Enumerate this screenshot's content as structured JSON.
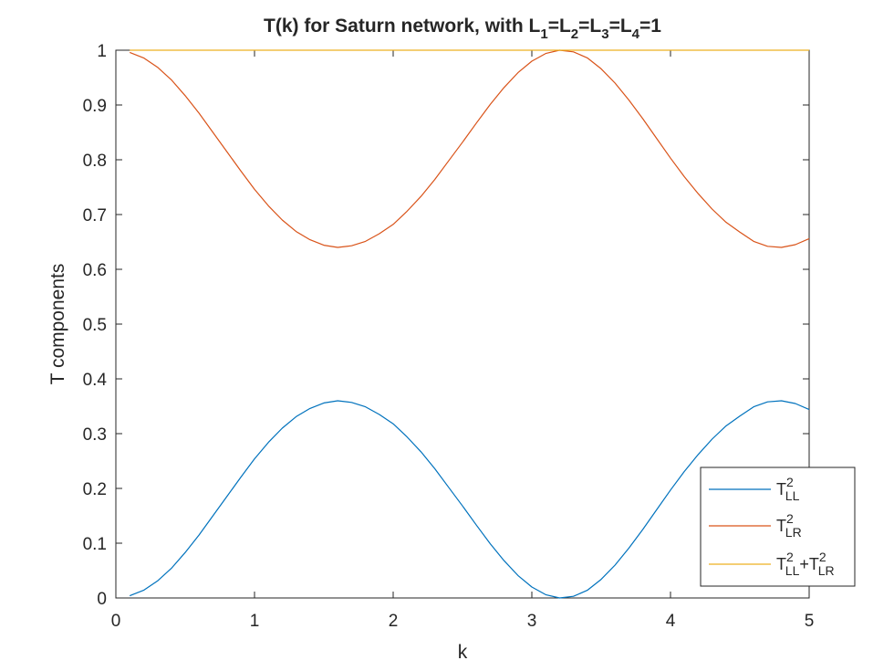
{
  "chart_data": {
    "type": "line",
    "title": "T(k) for Saturn network, with L1=L2=L3=L4=1",
    "title_parts": {
      "prefix": "T(k) for Saturn network, with L",
      "sub1": "1",
      "sep1": "=L",
      "sub2": "2",
      "sep2": "=L",
      "sub3": "3",
      "sep3": "=L",
      "sub4": "4",
      "suffix": "=1"
    },
    "xlabel": "k",
    "ylabel": "T components",
    "xlim": [
      0,
      5
    ],
    "ylim": [
      0,
      1
    ],
    "xticks": [
      "0",
      "1",
      "2",
      "3",
      "4",
      "5"
    ],
    "yticks": [
      "0",
      "0.1",
      "0.2",
      "0.3",
      "0.4",
      "0.5",
      "0.6",
      "0.7",
      "0.8",
      "0.9",
      "1"
    ],
    "grid": false,
    "legend_position": "bottom-right",
    "x": [
      0.1,
      0.2,
      0.3,
      0.4,
      0.5,
      0.6,
      0.7,
      0.8,
      0.9,
      1.0,
      1.1,
      1.2,
      1.3,
      1.4,
      1.5,
      1.6,
      1.7,
      1.8,
      1.9,
      2.0,
      2.1,
      2.2,
      2.3,
      2.4,
      2.5,
      2.6,
      2.7,
      2.8,
      2.9,
      3.0,
      3.1,
      3.2,
      3.3,
      3.4,
      3.5,
      3.6,
      3.7,
      3.8,
      3.9,
      4.0,
      4.1,
      4.2,
      4.3,
      4.4,
      4.5,
      4.6,
      4.7,
      4.8,
      4.9,
      5.0
    ],
    "series": [
      {
        "name": "T_LL^2",
        "legend": {
          "base": "T",
          "sup": "2",
          "sub": "LL"
        },
        "color": "#0072BD",
        "values": [
          0.004,
          0.014,
          0.031,
          0.054,
          0.083,
          0.115,
          0.15,
          0.185,
          0.22,
          0.254,
          0.284,
          0.31,
          0.331,
          0.346,
          0.356,
          0.36,
          0.357,
          0.349,
          0.335,
          0.318,
          0.294,
          0.267,
          0.236,
          0.202,
          0.168,
          0.133,
          0.099,
          0.068,
          0.041,
          0.02,
          0.006,
          0.0,
          0.003,
          0.014,
          0.034,
          0.06,
          0.091,
          0.125,
          0.161,
          0.197,
          0.231,
          0.262,
          0.29,
          0.314,
          0.332,
          0.349,
          0.358,
          0.36,
          0.355,
          0.344
        ]
      },
      {
        "name": "T_LR^2",
        "legend": {
          "base": "T",
          "sup": "2",
          "sub": "LR"
        },
        "color": "#D95319",
        "values": [
          0.996,
          0.986,
          0.969,
          0.946,
          0.917,
          0.885,
          0.85,
          0.815,
          0.78,
          0.746,
          0.716,
          0.69,
          0.669,
          0.654,
          0.644,
          0.64,
          0.643,
          0.651,
          0.665,
          0.682,
          0.706,
          0.733,
          0.764,
          0.798,
          0.832,
          0.867,
          0.901,
          0.932,
          0.959,
          0.98,
          0.994,
          1.0,
          0.997,
          0.986,
          0.966,
          0.94,
          0.909,
          0.875,
          0.839,
          0.803,
          0.769,
          0.738,
          0.71,
          0.686,
          0.668,
          0.651,
          0.642,
          0.64,
          0.645,
          0.656
        ]
      },
      {
        "name": "T_LL^2+T_LR^2",
        "legend": {
          "base": "T",
          "sup": "2",
          "sub": "LL",
          "plus": "+T",
          "sup2": "2",
          "sub2": "LR"
        },
        "color": "#EDB120",
        "values": [
          1,
          1,
          1,
          1,
          1,
          1,
          1,
          1,
          1,
          1,
          1,
          1,
          1,
          1,
          1,
          1,
          1,
          1,
          1,
          1,
          1,
          1,
          1,
          1,
          1,
          1,
          1,
          1,
          1,
          1,
          1,
          1,
          1,
          1,
          1,
          1,
          1,
          1,
          1,
          1,
          1,
          1,
          1,
          1,
          1,
          1,
          1,
          1,
          1,
          1
        ]
      }
    ]
  }
}
